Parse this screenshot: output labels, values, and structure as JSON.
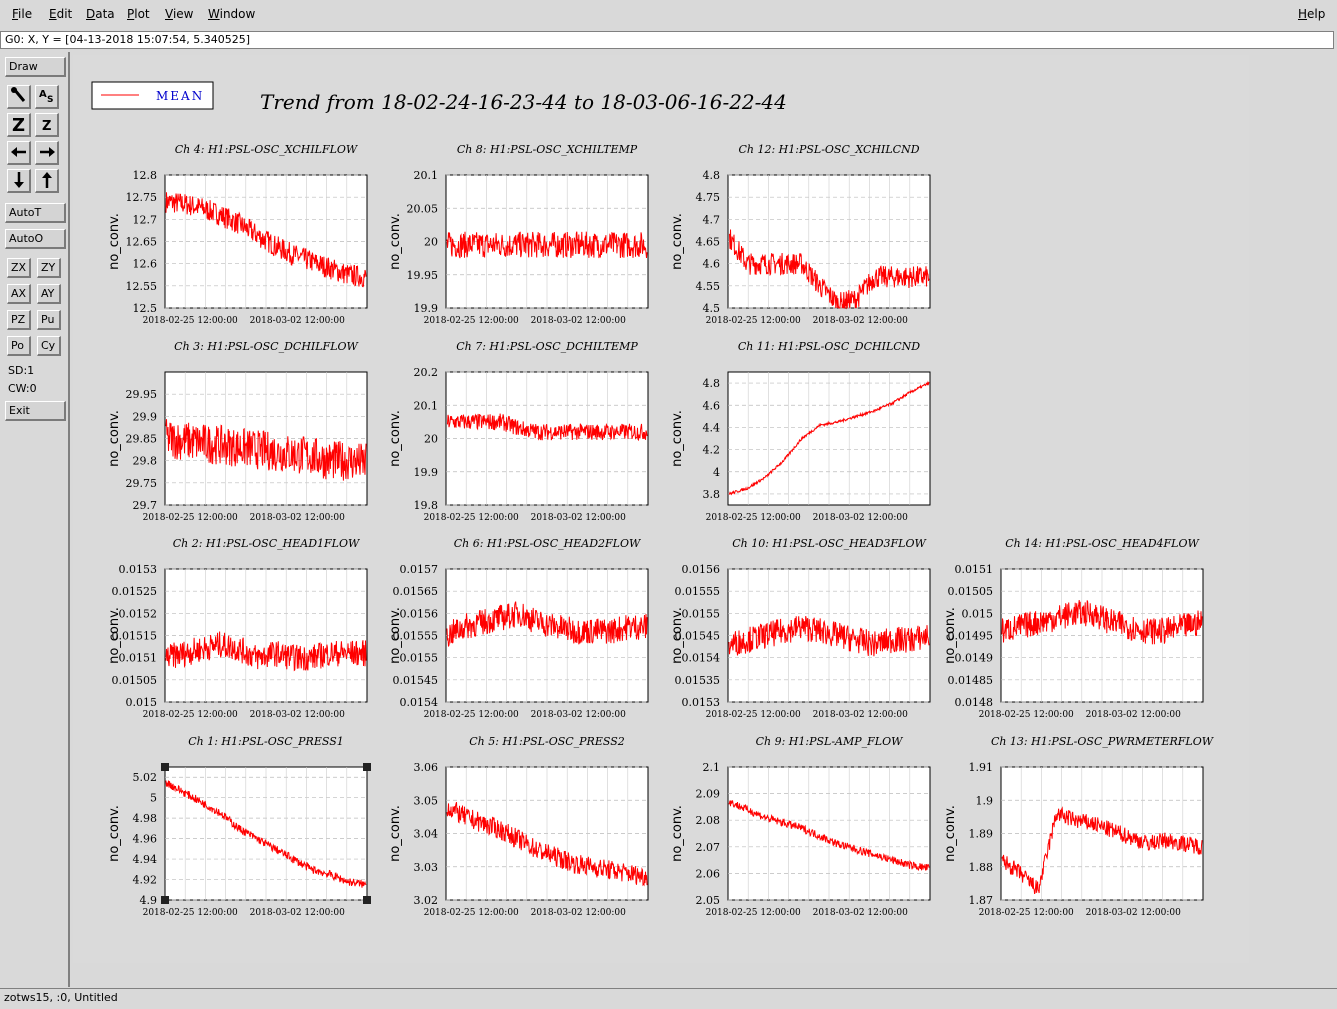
{
  "menubar": {
    "items": [
      "File",
      "Edit",
      "Data",
      "Plot",
      "View",
      "Window"
    ],
    "help": "Help"
  },
  "coords": {
    "text": "G0: X, Y = [04-13-2018 15:07:54, 5.340525]"
  },
  "toolbar": {
    "draw": "Draw",
    "autot": "AutoT",
    "autoo": "AutoO",
    "pair_buttons": [
      [
        "ZX",
        "ZY"
      ],
      [
        "AX",
        "AY"
      ],
      [
        "PZ",
        "Pu"
      ],
      [
        "Po",
        "Cy"
      ]
    ],
    "sd": "SD:1",
    "cw": "CW:0",
    "exit": "Exit"
  },
  "statusbar": {
    "text": "zotws15, :0, Untitled"
  },
  "legend": {
    "label": "MEAN",
    "line_color": "#ff0000"
  },
  "title": "Trend from 18-02-24-16-23-44 to 18-03-06-16-22-44",
  "ylabel": "no_conv.",
  "xticks": [
    "2018-02-25 12:00:00",
    "2018-03-02 12:00:00"
  ],
  "chart_data": [
    {
      "type": "line",
      "title": "Ch 4: H1:PSL-OSC_XCHILFLOW",
      "ylim": [
        12.5,
        12.8
      ],
      "yticks": [
        "12.8",
        "12.75",
        "12.7",
        "12.65",
        "12.6",
        "12.55",
        "12.5"
      ],
      "values": [
        12.74,
        12.735,
        12.725,
        12.71,
        12.69,
        12.665,
        12.64,
        12.62,
        12.605,
        12.59,
        12.575,
        12.57
      ],
      "noise": 0.025,
      "series": [
        {
          "name": "MEAN"
        }
      ]
    },
    {
      "type": "line",
      "title": "Ch 8: H1:PSL-OSC_XCHILTEMP",
      "ylim": [
        19.9,
        20.1
      ],
      "yticks": [
        "20.1",
        "20.05",
        "20",
        "19.95",
        "19.9"
      ],
      "values": [
        19.995,
        19.995,
        19.995,
        19.995,
        19.995,
        19.995,
        19.995,
        19.995,
        19.995,
        19.995,
        19.995,
        19.995
      ],
      "noise": 0.02,
      "series": [
        {
          "name": "MEAN"
        }
      ]
    },
    {
      "type": "line",
      "title": "Ch 12: H1:PSL-OSC_XCHILCND",
      "ylim": [
        4.5,
        4.8
      ],
      "yticks": [
        "4.8",
        "4.75",
        "4.7",
        "4.65",
        "4.6",
        "4.55",
        "4.5"
      ],
      "values": [
        4.66,
        4.6,
        4.6,
        4.6,
        4.6,
        4.55,
        4.51,
        4.52,
        4.57,
        4.57,
        4.57,
        4.57
      ],
      "noise": 0.025,
      "series": [
        {
          "name": "MEAN"
        }
      ]
    },
    {
      "type": "line",
      "title": "Ch 3: H1:PSL-OSC_DCHILFLOW",
      "ylim": [
        29.7,
        30
      ],
      "yticks": [
        "29.95",
        "29.9",
        "29.85",
        "29.8",
        "29.75",
        "29.7"
      ],
      "values": [
        29.85,
        29.845,
        29.84,
        29.835,
        29.83,
        29.825,
        29.82,
        29.815,
        29.81,
        29.8,
        29.8,
        29.795
      ],
      "noise": 0.045,
      "series": [
        {
          "name": "MEAN"
        }
      ]
    },
    {
      "type": "line",
      "title": "Ch 7: H1:PSL-OSC_DCHILTEMP",
      "ylim": [
        19.8,
        20.2
      ],
      "yticks": [
        "20.2",
        "20.1",
        "20",
        "19.9",
        "19.8"
      ],
      "values": [
        20.05,
        20.05,
        20.05,
        20.05,
        20.03,
        20.02,
        20.02,
        20.02,
        20.02,
        20.02,
        20.02,
        20.02
      ],
      "noise": 0.025,
      "series": [
        {
          "name": "MEAN"
        }
      ]
    },
    {
      "type": "line",
      "title": "Ch 11: H1:PSL-OSC_DCHILCND",
      "ylim": [
        3.7,
        4.9
      ],
      "yticks": [
        "4.8",
        "4.6",
        "4.4",
        "4.2",
        "4",
        "3.8"
      ],
      "values": [
        3.8,
        3.85,
        3.95,
        4.1,
        4.3,
        4.42,
        4.45,
        4.5,
        4.55,
        4.62,
        4.72,
        4.8
      ],
      "noise": 0.012,
      "series": [
        {
          "name": "MEAN"
        }
      ]
    },
    {
      "type": "line",
      "title": "Ch 2: H1:PSL-OSC_HEAD1FLOW",
      "ylim": [
        0.015,
        0.0153
      ],
      "yticks": [
        "0.0153",
        "0.01525",
        "0.0152",
        "0.01515",
        "0.0151",
        "0.01505",
        "0.015"
      ],
      "values": [
        0.0151,
        0.01511,
        0.01512,
        0.01513,
        0.01512,
        0.0151,
        0.01511,
        0.0151,
        0.0151,
        0.01511,
        0.01511,
        0.01511
      ],
      "noise": 3e-05,
      "series": [
        {
          "name": "MEAN"
        }
      ]
    },
    {
      "type": "line",
      "title": "Ch 6: H1:PSL-OSC_HEAD2FLOW",
      "ylim": [
        0.0154,
        0.0157
      ],
      "yticks": [
        "0.0157",
        "0.01565",
        "0.0156",
        "0.01555",
        "0.0155",
        "0.01545",
        "0.0154"
      ],
      "values": [
        0.01555,
        0.01557,
        0.01558,
        0.01559,
        0.0156,
        0.01558,
        0.01557,
        0.01556,
        0.01556,
        0.01556,
        0.01557,
        0.01557
      ],
      "noise": 3e-05,
      "series": [
        {
          "name": "MEAN"
        }
      ]
    },
    {
      "type": "line",
      "title": "Ch 10: H1:PSL-OSC_HEAD3FLOW",
      "ylim": [
        0.0153,
        0.0156
      ],
      "yticks": [
        "0.0156",
        "0.01555",
        "0.0155",
        "0.01545",
        "0.0154",
        "0.01535",
        "0.0153"
      ],
      "values": [
        0.01543,
        0.01544,
        0.01545,
        0.01546,
        0.01547,
        0.01546,
        0.01545,
        0.01544,
        0.01543,
        0.01544,
        0.01544,
        0.01545
      ],
      "noise": 3e-05,
      "series": [
        {
          "name": "MEAN"
        }
      ]
    },
    {
      "type": "line",
      "title": "Ch 14: H1:PSL-OSC_HEAD4FLOW",
      "ylim": [
        0.0148,
        0.0151
      ],
      "yticks": [
        "0.0151",
        "0.01505",
        "0.015",
        "0.01495",
        "0.0149",
        "0.01485",
        "0.0148"
      ],
      "values": [
        0.01496,
        0.01497,
        0.01498,
        0.01499,
        0.015,
        0.015,
        0.01498,
        0.01497,
        0.01496,
        0.01496,
        0.01497,
        0.01498
      ],
      "noise": 3e-05,
      "series": [
        {
          "name": "MEAN"
        }
      ]
    },
    {
      "type": "line",
      "title": "Ch 1: H1:PSL-OSC_PRESS1",
      "ylim": [
        4.9,
        5.03
      ],
      "yticks": [
        "5.02",
        "5",
        "4.98",
        "4.96",
        "4.94",
        "4.92",
        "4.9"
      ],
      "values": [
        5.015,
        5.005,
        4.995,
        4.985,
        4.97,
        4.96,
        4.95,
        4.94,
        4.93,
        4.925,
        4.918,
        4.915
      ],
      "noise": 0.004,
      "series": [
        {
          "name": "MEAN"
        }
      ]
    },
    {
      "type": "line",
      "title": "Ch 5: H1:PSL-OSC_PRESS2",
      "ylim": [
        3.02,
        3.06
      ],
      "yticks": [
        "3.06",
        "3.05",
        "3.04",
        "3.03",
        "3.02"
      ],
      "values": [
        3.048,
        3.045,
        3.043,
        3.041,
        3.038,
        3.035,
        3.033,
        3.031,
        3.03,
        3.029,
        3.028,
        3.027
      ],
      "noise": 0.003,
      "series": [
        {
          "name": "MEAN"
        }
      ]
    },
    {
      "type": "line",
      "title": "Ch 9: H1:PSL-AMP_FLOW",
      "ylim": [
        2.05,
        2.1
      ],
      "yticks": [
        "2.1",
        "2.09",
        "2.08",
        "2.07",
        "2.06",
        "2.05"
      ],
      "values": [
        2.087,
        2.084,
        2.081,
        2.079,
        2.077,
        2.074,
        2.071,
        2.069,
        2.067,
        2.065,
        2.063,
        2.062
      ],
      "noise": 0.0015,
      "series": [
        {
          "name": "MEAN"
        }
      ]
    },
    {
      "type": "line",
      "title": "Ch 13: H1:PSL-OSC_PWRMETERFLOW",
      "ylim": [
        1.87,
        1.91
      ],
      "yticks": [
        "1.91",
        "1.9",
        "1.89",
        "1.88",
        "1.87"
      ],
      "values": [
        1.882,
        1.878,
        1.873,
        1.896,
        1.894,
        1.893,
        1.891,
        1.889,
        1.887,
        1.888,
        1.887,
        1.886
      ],
      "noise": 0.0025,
      "series": [
        {
          "name": "MEAN"
        }
      ]
    }
  ]
}
